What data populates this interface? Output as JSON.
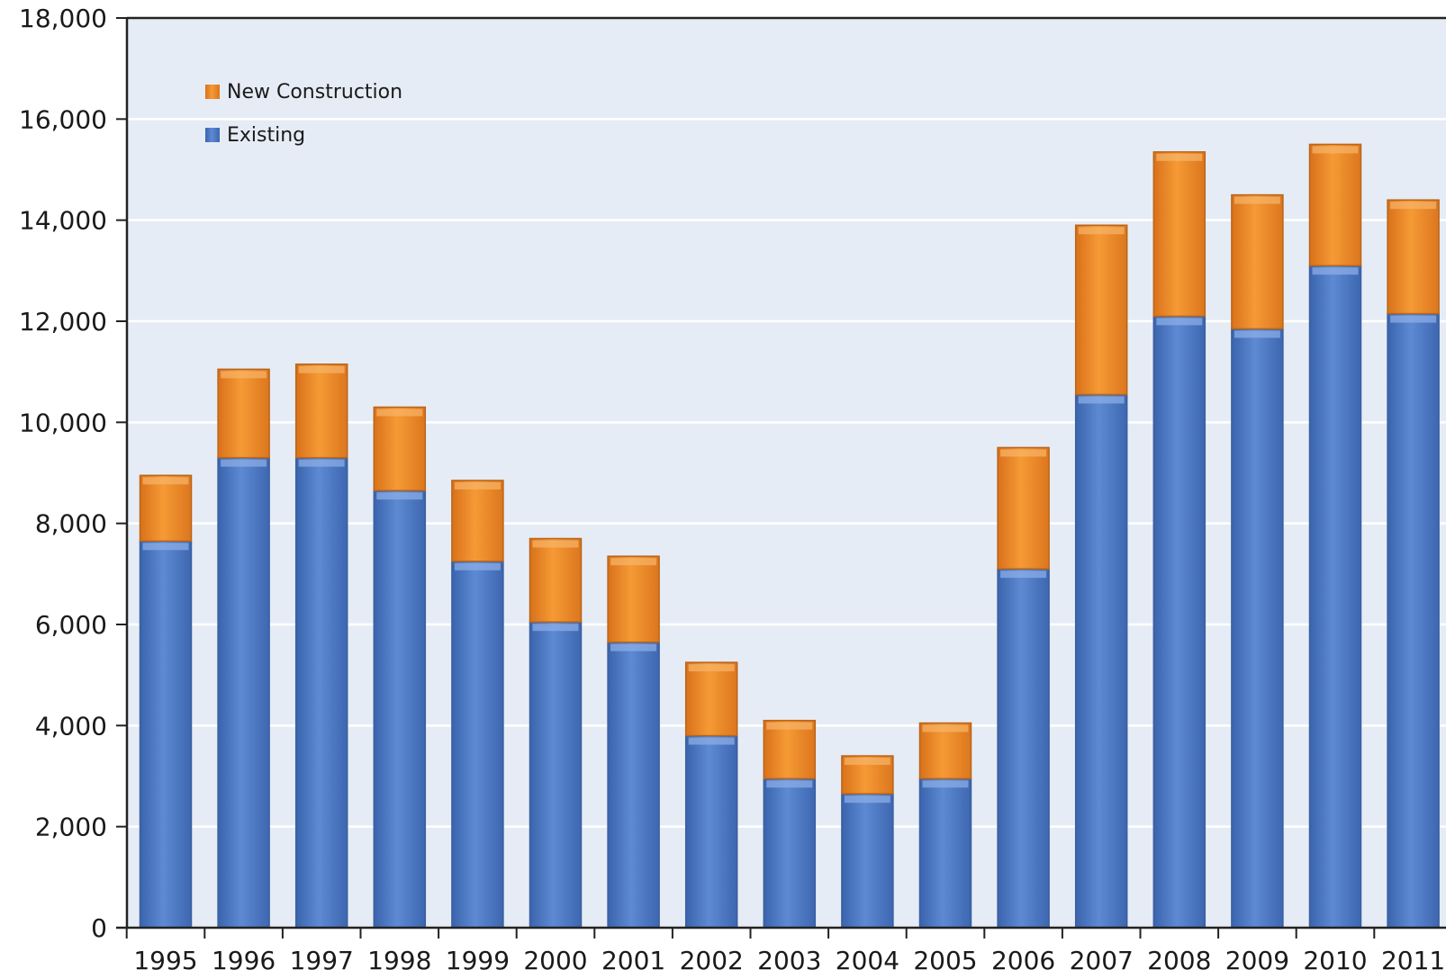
{
  "chart_data": {
    "type": "bar",
    "stacked": true,
    "categories": [
      "1995",
      "1996",
      "1997",
      "1998",
      "1999",
      "2000",
      "2001",
      "2002",
      "2003",
      "2004",
      "2005",
      "2006",
      "2007",
      "2008",
      "2009",
      "2010",
      "2011"
    ],
    "series": [
      {
        "name": "Existing",
        "color": "#4f7cc9",
        "values": [
          7650,
          9300,
          9300,
          8650,
          7250,
          6050,
          5650,
          3800,
          2950,
          2650,
          2950,
          7100,
          10550,
          12100,
          11850,
          13100,
          12150
        ]
      },
      {
        "name": "New Construction",
        "color": "#f08e22",
        "values": [
          1300,
          1750,
          1850,
          1650,
          1600,
          1650,
          1700,
          1450,
          1150,
          750,
          1100,
          2400,
          3350,
          3250,
          2650,
          2400,
          2250
        ]
      }
    ],
    "legend_order": [
      "New Construction",
      "Existing"
    ],
    "legend_position": "top-left",
    "y_ticks": [
      "0",
      "2,000",
      "4,000",
      "6,000",
      "8,000",
      "10,000",
      "12,000",
      "14,000",
      "16,000",
      "18,000"
    ],
    "ylim": [
      0,
      18000
    ],
    "grid": true,
    "plot_background": "#e6ecf5",
    "xlabel": "",
    "ylabel": "",
    "title": ""
  }
}
